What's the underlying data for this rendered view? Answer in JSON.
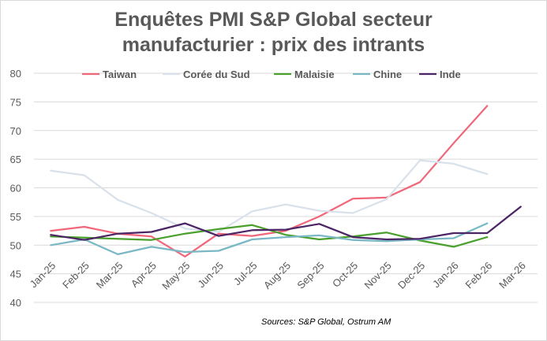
{
  "chart_data": {
    "type": "line",
    "title": "Enquêtes PMI S&P Global secteur manufacturier : prix des intrants",
    "title_lines": [
      "Enquêtes PMI S&P Global secteur",
      "manufacturier : prix des intrants"
    ],
    "xlabel": "",
    "ylabel": "",
    "ylim": [
      40,
      80
    ],
    "yticks": [
      40,
      45,
      50,
      55,
      60,
      65,
      70,
      75,
      80
    ],
    "grid": true,
    "legend_position": "top",
    "categories": [
      "Jan-25",
      "Feb-25",
      "Mar-25",
      "Apr-25",
      "May-25",
      "Jun-25",
      "Jul-25",
      "Aug-25",
      "Sep-25",
      "Oct-25",
      "Nov-25",
      "Dec-25",
      "Jan-26",
      "Feb-26",
      "Mar-26"
    ],
    "series": [
      {
        "name": "Taiwan",
        "color": "#f0677a",
        "values": [
          52.5,
          53.2,
          52.0,
          51.5,
          48.0,
          52.0,
          51.6,
          52.5,
          55.0,
          58.1,
          58.3,
          61.0,
          67.8,
          74.3,
          null
        ]
      },
      {
        "name": "Corée du Sud",
        "color": "#d9e1ea",
        "values": [
          63.0,
          62.2,
          57.9,
          55.6,
          52.9,
          52.3,
          55.9,
          57.1,
          56.0,
          55.6,
          58.0,
          64.8,
          64.2,
          62.4,
          null
        ]
      },
      {
        "name": "Malaisie",
        "color": "#4aa02c",
        "values": [
          51.5,
          51.3,
          51.1,
          50.9,
          52.0,
          52.8,
          53.5,
          51.8,
          51.0,
          51.5,
          52.2,
          50.8,
          49.7,
          51.4,
          null
        ]
      },
      {
        "name": "Chine",
        "color": "#7ab8c6",
        "values": [
          50.0,
          51.0,
          48.4,
          49.7,
          48.8,
          49.0,
          51.0,
          51.4,
          51.7,
          50.9,
          50.7,
          51.0,
          51.2,
          53.8,
          null
        ]
      },
      {
        "name": "Inde",
        "color": "#4b2565",
        "values": [
          51.8,
          50.9,
          52.0,
          52.3,
          53.8,
          51.6,
          52.6,
          52.7,
          53.7,
          51.4,
          51.0,
          51.1,
          52.1,
          52.1,
          56.7
        ]
      }
    ],
    "source": "Sources: S&P Global, Ostrum AM"
  }
}
